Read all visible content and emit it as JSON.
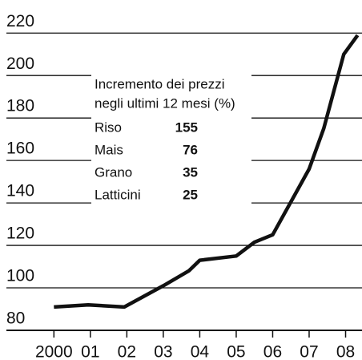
{
  "chart_data": {
    "type": "line",
    "x": [
      2000,
      2000.94,
      2001.93,
      2003,
      2003.7,
      2004,
      2005,
      2005.5,
      2006,
      2007,
      2007.4,
      2007.95,
      2008.33
    ],
    "series": [
      {
        "color": "#111111",
        "values": [
          91,
          92,
          91,
          101,
          108,
          113,
          115,
          121.5,
          125,
          156,
          175,
          210,
          219
        ]
      }
    ],
    "xlim": [
      1999.4,
      2008.45
    ],
    "xticks": [
      {
        "value": 2000,
        "label": "2000"
      },
      {
        "value": 2001,
        "label": "01"
      },
      {
        "value": 2002,
        "label": "02"
      },
      {
        "value": 2003,
        "label": "03"
      },
      {
        "value": 2004,
        "label": "04"
      },
      {
        "value": 2005,
        "label": "05"
      },
      {
        "value": 2006,
        "label": "06"
      },
      {
        "value": 2007,
        "label": "07"
      },
      {
        "value": 2008,
        "label": "08"
      }
    ],
    "ylim": [
      80,
      225
    ],
    "yticks": [
      80,
      100,
      120,
      140,
      160,
      180,
      200,
      220
    ],
    "grid": true,
    "annotation": {
      "lines": [
        "Incremento dei prezzi",
        "negli ultimi 12 mesi (%)"
      ],
      "rows": [
        {
          "label": "Riso",
          "value": 155
        },
        {
          "label": "Mais",
          "value": 76
        },
        {
          "label": "Grano",
          "value": 35
        },
        {
          "label": "Latticini",
          "value": 25
        }
      ]
    }
  }
}
